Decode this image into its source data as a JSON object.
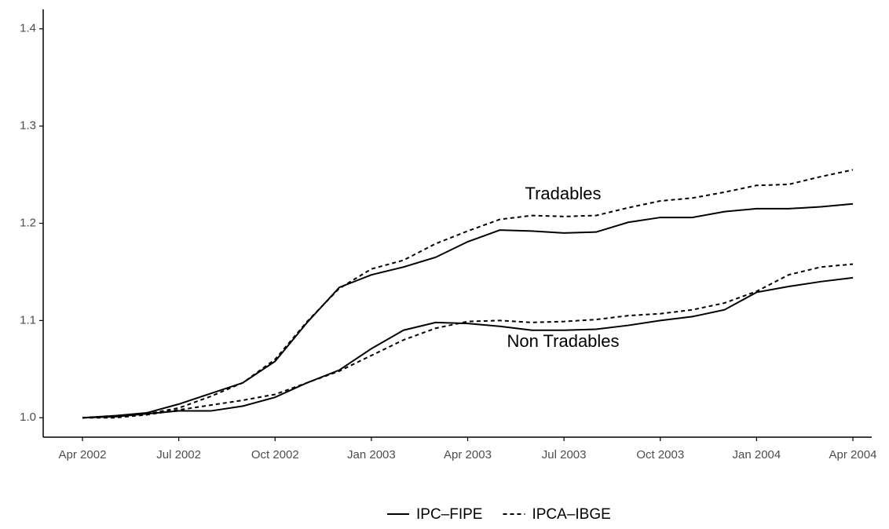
{
  "chart_data": {
    "type": "line",
    "x": [
      "2002-04",
      "2002-05",
      "2002-06",
      "2002-07",
      "2002-08",
      "2002-09",
      "2002-10",
      "2002-11",
      "2002-12",
      "2003-01",
      "2003-02",
      "2003-03",
      "2003-04",
      "2003-05",
      "2003-06",
      "2003-07",
      "2003-08",
      "2003-09",
      "2003-10",
      "2003-11",
      "2003-12",
      "2004-01",
      "2004-02",
      "2004-03",
      "2004-04"
    ],
    "series": [
      {
        "name": "IPC–FIPE",
        "color": "#000000",
        "dashed": false,
        "values": [
          1.0,
          1.002,
          1.005,
          1.014,
          1.025,
          1.036,
          1.058,
          1.098,
          1.134,
          1.147,
          1.155,
          1.165,
          1.181,
          1.193,
          1.192,
          1.19,
          1.191,
          1.201,
          1.206,
          1.206,
          1.212,
          1.215,
          1.215,
          1.217,
          1.22
        ]
      },
      {
        "name": "IPCA–IBGE",
        "color": "#000000",
        "dashed": true,
        "values": [
          1.0,
          1.002,
          1.004,
          1.01,
          1.022,
          1.036,
          1.06,
          1.099,
          1.133,
          1.153,
          1.162,
          1.179,
          1.192,
          1.204,
          1.208,
          1.207,
          1.208,
          1.216,
          1.223,
          1.226,
          1.232,
          1.239,
          1.24,
          1.248,
          1.255
        ]
      },
      {
        "name": "IPC–FIPE",
        "color": "#000000",
        "dashed": false,
        "values": [
          1.0,
          1.001,
          1.004,
          1.007,
          1.007,
          1.012,
          1.021,
          1.036,
          1.049,
          1.071,
          1.09,
          1.098,
          1.097,
          1.094,
          1.09,
          1.09,
          1.091,
          1.095,
          1.1,
          1.104,
          1.111,
          1.129,
          1.135,
          1.14,
          1.144
        ]
      },
      {
        "name": "IPCA–IBGE",
        "color": "#000000",
        "dashed": true,
        "values": [
          1.0,
          1.0,
          1.003,
          1.008,
          1.013,
          1.018,
          1.024,
          1.036,
          1.048,
          1.064,
          1.08,
          1.092,
          1.099,
          1.1,
          1.098,
          1.099,
          1.101,
          1.105,
          1.107,
          1.111,
          1.118,
          1.13,
          1.147,
          1.155,
          1.158
        ]
      }
    ],
    "annotations": [
      "Tradables",
      "Non Tradables"
    ],
    "ylim": [
      0.98,
      1.42
    ],
    "yticks": [
      {
        "value": 1,
        "label": "1.0"
      },
      1.1,
      1.2,
      1.3,
      1.4
    ],
    "xticks": [
      {
        "value": "2002-04",
        "label": "Apr 2002"
      },
      {
        "value": "2002-07",
        "label": "Jul 2002"
      },
      {
        "value": "2002-10",
        "label": "Oct 2002"
      },
      {
        "value": "2003-01",
        "label": "Jan 2003"
      },
      {
        "value": "2003-04",
        "label": "Apr 2003"
      },
      {
        "value": "2003-07",
        "label": "Jul 2003"
      },
      {
        "value": "2003-10",
        "label": "Oct 2003"
      },
      {
        "value": "2004-01",
        "label": "Jan 2004"
      },
      {
        "value": "2004-04",
        "label": "Apr 2004"
      }
    ]
  }
}
